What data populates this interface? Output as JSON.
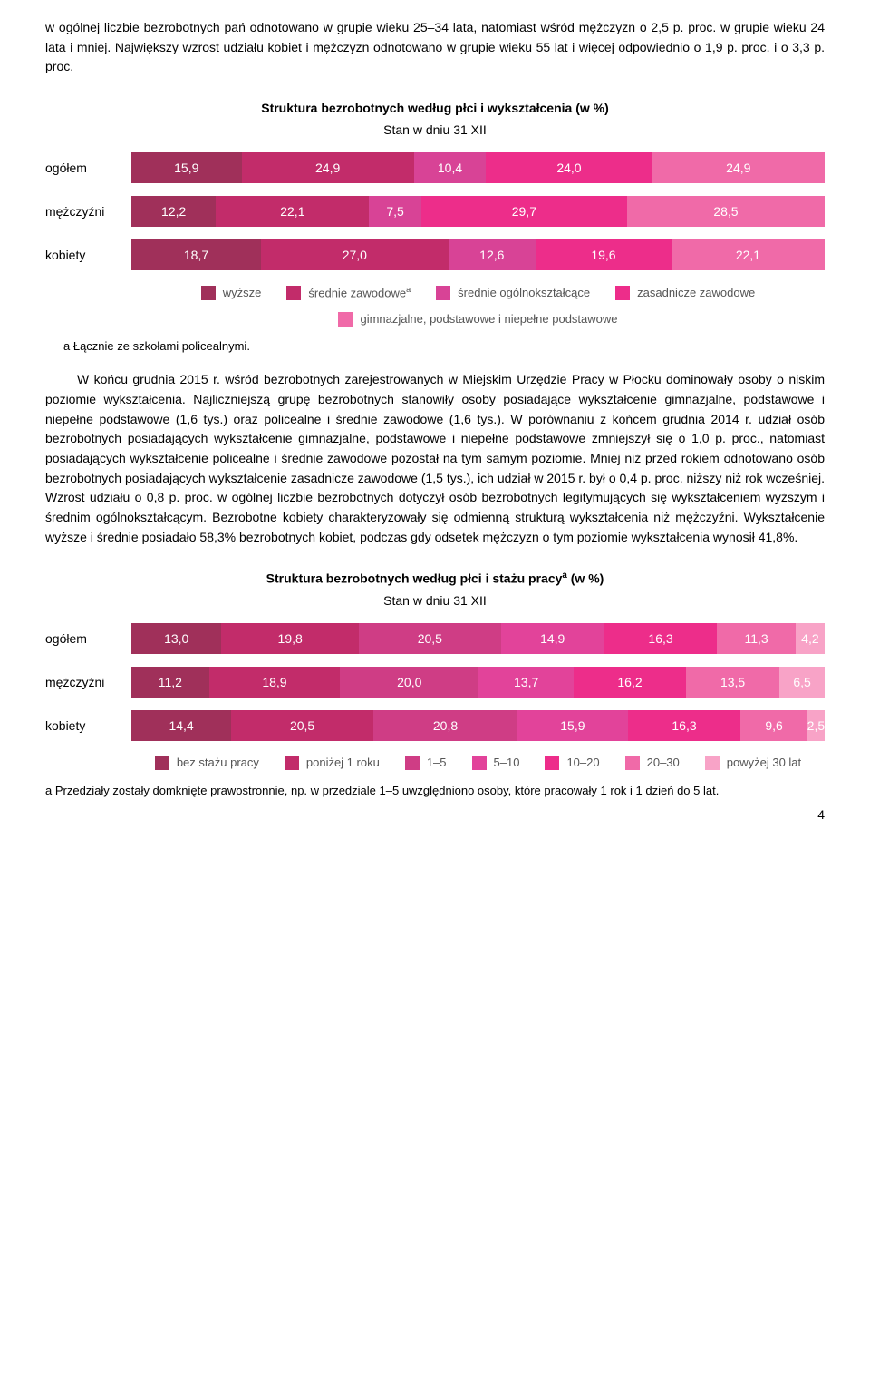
{
  "para_intro": "w ogólnej liczbie bezrobotnych pań odnotowano w grupie wieku 25–34 lata, natomiast wśród mężczyzn o 2,5 p. proc. w grupie wieku 24 lata i mniej. Największy wzrost udziału kobiet i mężczyzn odnotowano w grupie wieku 55 lat i więcej odpowiednio o 1,9 p. proc. i o 3,3 p. proc.",
  "chart1": {
    "title_html": "Struktura bezrobotnych według płci i wykształcenia (w %)",
    "subtitle": "Stan w dniu 31 XII",
    "colors": [
      "#a0305a",
      "#c22c6a",
      "#d84396",
      "#ed2d8a",
      "#f06aa8"
    ],
    "rows": [
      {
        "label": "ogółem",
        "values": [
          15.9,
          24.9,
          10.4,
          24.0,
          24.9
        ],
        "labels": [
          "15,9",
          "24,9",
          "10,4",
          "24,0",
          "24,9"
        ]
      },
      {
        "label": "mężczyźni",
        "values": [
          12.2,
          22.1,
          7.5,
          29.7,
          28.5
        ],
        "labels": [
          "12,2",
          "22,1",
          "7,5",
          "29,7",
          "28,5"
        ]
      },
      {
        "label": "kobiety",
        "values": [
          18.7,
          27.0,
          12.6,
          19.6,
          22.1
        ],
        "labels": [
          "18,7",
          "27,0",
          "12,6",
          "19,6",
          "22,1"
        ]
      }
    ],
    "legend": [
      {
        "color": "#a0305a",
        "label": "wyższe"
      },
      {
        "color": "#c22c6a",
        "label_html": "średnie zawodowe<sup>a</sup>"
      },
      {
        "color": "#d84396",
        "label": "średnie ogólnokształcące"
      },
      {
        "color": "#ed2d8a",
        "label": "zasadnicze zawodowe"
      },
      {
        "color": "#f06aa8",
        "label": "gimnazjalne, podstawowe i niepełne podstawowe"
      }
    ],
    "footnote": "a Łącznie ze szkołami policealnymi."
  },
  "para_body": "W końcu grudnia 2015 r. wśród bezrobotnych zarejestrowanych w Miejskim Urzędzie Pracy w Płocku dominowały osoby o niskim poziomie wykształcenia. Najliczniejszą grupę bezrobotnych stanowiły osoby posiadające wykształcenie gimnazjalne, podstawowe i niepełne podstawowe (1,6 tys.) oraz policealne i średnie zawodowe (1,6 tys.). W porównaniu z końcem grudnia 2014 r. udział osób bezrobotnych posiadających wykształcenie gimnazjalne, podstawowe i niepełne podstawowe zmniejszył się o 1,0 p. proc., natomiast posiadających wykształcenie policealne i średnie zawodowe pozostał na tym samym poziomie. Mniej niż przed rokiem odnotowano osób bezrobotnych posiadających wykształcenie zasadnicze zawodowe (1,5 tys.), ich udział w 2015 r. był o 0,4 p. proc. niższy niż rok wcześniej. Wzrost udziału o 0,8 p. proc. w ogólnej liczbie bezrobotnych dotyczył osób bezrobotnych legitymujących się wykształceniem wyższym i średnim ogólnokształcącym. Bezrobotne kobiety charakteryzowały się odmienną strukturą wykształcenia niż mężczyźni. Wykształcenie wyższe i średnie posiadało 58,3% bezrobotnych kobiet, podczas gdy odsetek mężczyzn o tym poziomie wykształcenia wynosił 41,8%.",
  "chart2": {
    "title_html": "Struktura bezrobotnych według płci i stażu pracy<sup>a</sup> (w %)",
    "subtitle": "Stan w dniu 31 XII",
    "colors": [
      "#a0305a",
      "#c22c6a",
      "#cf3d85",
      "#e2439a",
      "#ed2d8a",
      "#f06aa8",
      "#f8a3c7"
    ],
    "rows": [
      {
        "label": "ogółem",
        "values": [
          13.0,
          19.8,
          20.5,
          14.9,
          16.3,
          11.3,
          4.2
        ],
        "labels": [
          "13,0",
          "19,8",
          "20,5",
          "14,9",
          "16,3",
          "11,3",
          "4,2"
        ]
      },
      {
        "label": "mężczyźni",
        "values": [
          11.2,
          18.9,
          20.0,
          13.7,
          16.2,
          13.5,
          6.5
        ],
        "labels": [
          "11,2",
          "18,9",
          "20,0",
          "13,7",
          "16,2",
          "13,5",
          "6,5"
        ]
      },
      {
        "label": "kobiety",
        "values": [
          14.4,
          20.5,
          20.8,
          15.9,
          16.3,
          9.6,
          2.5
        ],
        "labels": [
          "14,4",
          "20,5",
          "20,8",
          "15,9",
          "16,3",
          "9,6",
          "2,5"
        ]
      }
    ],
    "legend": [
      {
        "color": "#a0305a",
        "label": "bez stażu pracy"
      },
      {
        "color": "#c22c6a",
        "label": "poniżej 1 roku"
      },
      {
        "color": "#cf3d85",
        "label": "1–5"
      },
      {
        "color": "#e2439a",
        "label": "5–10"
      },
      {
        "color": "#ed2d8a",
        "label": "10–20"
      },
      {
        "color": "#f06aa8",
        "label": "20–30"
      },
      {
        "color": "#f8a3c7",
        "label": "powyżej 30 lat"
      }
    ],
    "footnote": "a Przedziały zostały domknięte prawostronnie, np. w przedziale 1–5 uwzględniono osoby, które pracowały 1 rok i 1 dzień do 5 lat."
  },
  "page_number": "4"
}
